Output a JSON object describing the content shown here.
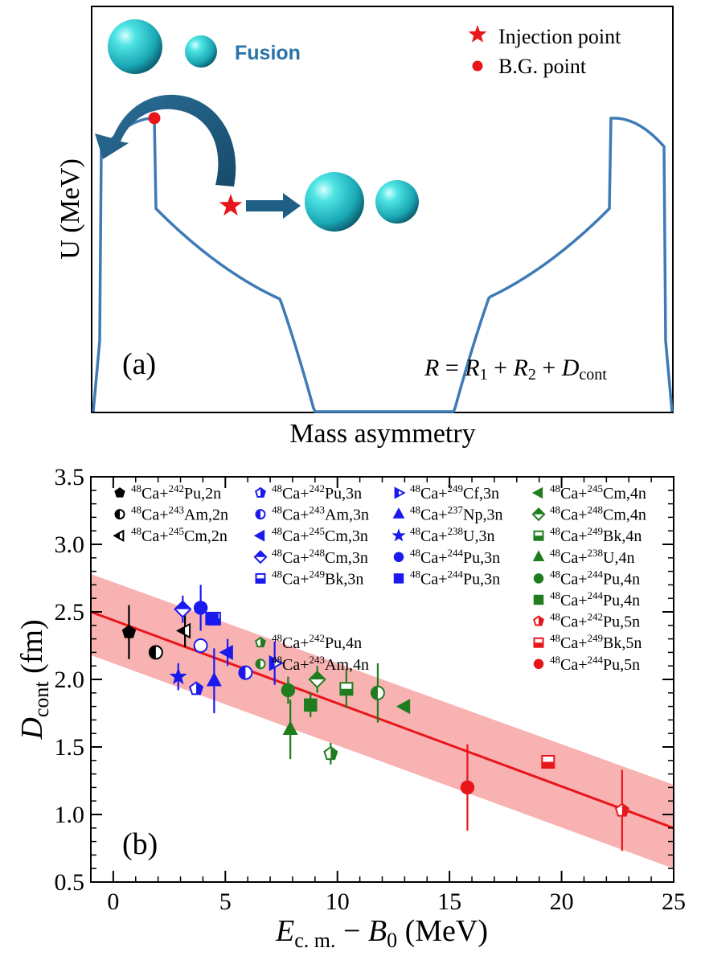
{
  "panel_a": {
    "label": "(a)",
    "ylabel": "U (MeV)",
    "xlabel": "Mass asymmetry",
    "fusion_label": "Fusion",
    "formula": {
      "lhs": "R",
      "t1": "R",
      "s1": "1",
      "t2": "R",
      "s2": "2",
      "t3": "D",
      "s3": "cont"
    },
    "legend": [
      {
        "label": "Injection point",
        "marker": "star",
        "color": "#e8161b"
      },
      {
        "label": "B.G. point",
        "marker": "circle",
        "color": "#e8161b"
      }
    ],
    "colors": {
      "curve": "#3e7bb6",
      "arrow": "#1f5f86",
      "sphere": "#29c8c8",
      "fusion_text": "#2a73a8"
    }
  },
  "chart_data": {
    "type": "scatter",
    "panel_label": "(b)",
    "xlabel": {
      "main": "E",
      "sub": "c. m.",
      "mid": " − ",
      "main2": "B",
      "sub2": "0",
      "unit": " (MeV)"
    },
    "ylabel": {
      "main": "D",
      "sub": "cont",
      "unit": " (fm)"
    },
    "xlim": [
      -1,
      25
    ],
    "ylim": [
      0.5,
      3.5
    ],
    "xticks": [
      "0",
      "5",
      "10",
      "15",
      "20",
      "25"
    ],
    "yticks": [
      "0.5",
      "1.0",
      "1.5",
      "2.0",
      "2.5",
      "3.0",
      "3.5"
    ],
    "fit_line": {
      "x": [
        -1,
        25
      ],
      "y": [
        2.5,
        0.9
      ],
      "color": "#e8161b"
    },
    "band": {
      "upper": [
        2.78,
        1.22
      ],
      "lower": [
        2.18,
        0.6
      ],
      "color": "#f8b2b2"
    },
    "colors": {
      "black": "#000000",
      "blue": "#1a1aee",
      "green": "#1f7d1f",
      "red": "#e8161b"
    },
    "series": [
      {
        "name": "⁴⁸Ca+²⁴²Pu,2n",
        "iso": "48",
        "nuc": "Ca",
        "tiso": "242",
        "tgt": "Pu,2n",
        "marker": "pentagon",
        "fill": "full",
        "color": "black",
        "points": [
          {
            "x": 0.7,
            "y": 2.35,
            "err": 0.2
          }
        ]
      },
      {
        "name": "⁴⁸Ca+²⁴³Am,2n",
        "iso": "48",
        "nuc": "Ca",
        "tiso": "243",
        "tgt": "Am,2n",
        "marker": "circle",
        "fill": "left",
        "color": "black",
        "points": [
          {
            "x": 1.9,
            "y": 2.2,
            "err": 0.0
          }
        ]
      },
      {
        "name": "⁴⁸Ca+²⁴⁵Cm,2n",
        "iso": "48",
        "nuc": "Ca",
        "tiso": "245",
        "tgt": "Cm,2n",
        "marker": "tri-left",
        "fill": "left",
        "color": "black",
        "points": [
          {
            "x": 3.2,
            "y": 2.36,
            "err": 0.12
          }
        ]
      },
      {
        "name": "⁴⁸Ca+²⁴²Pu,3n",
        "iso": "48",
        "nuc": "Ca",
        "tiso": "242",
        "tgt": "Pu,3n",
        "marker": "pentagon",
        "fill": "right",
        "color": "blue",
        "points": [
          {
            "x": 3.7,
            "y": 1.93,
            "err": 0.0
          }
        ]
      },
      {
        "name": "⁴⁸Ca+²⁴³Am,3n",
        "iso": "48",
        "nuc": "Ca",
        "tiso": "243",
        "tgt": "Am,3n",
        "marker": "circle",
        "fill": "left",
        "color": "blue",
        "points": [
          {
            "x": 5.9,
            "y": 2.05,
            "err": 0.0
          }
        ]
      },
      {
        "name": "⁴⁸Ca+²⁴⁵Cm,3n",
        "iso": "48",
        "nuc": "Ca",
        "tiso": "245",
        "tgt": "Cm,3n",
        "marker": "tri-left",
        "fill": "full",
        "color": "blue",
        "points": [
          {
            "x": 5.1,
            "y": 2.2,
            "err": 0.1
          }
        ]
      },
      {
        "name": "⁴⁸Ca+²⁴⁸Cm,3n",
        "iso": "48",
        "nuc": "Ca",
        "tiso": "248",
        "tgt": "Cm,3n",
        "marker": "diamond",
        "fill": "top",
        "color": "blue",
        "points": [
          {
            "x": 3.1,
            "y": 2.52,
            "err": 0.1
          }
        ]
      },
      {
        "name": "⁴⁸Ca+²⁴⁹Bk,3n",
        "iso": "48",
        "nuc": "Ca",
        "tiso": "249",
        "tgt": "Bk,3n",
        "marker": "square",
        "fill": "bottom",
        "color": "blue",
        "points": [
          {
            "x": 4.5,
            "y": 2.45,
            "err": 0.05
          }
        ]
      },
      {
        "name": "⁴⁸Ca+²⁴⁹Cf,3n",
        "iso": "48",
        "nuc": "Ca",
        "tiso": "249",
        "tgt": "Cf,3n",
        "marker": "tri-right",
        "fill": "left",
        "color": "blue",
        "points": [
          {
            "x": 7.2,
            "y": 2.12,
            "err": 0.16
          }
        ]
      },
      {
        "name": "⁴⁸Ca+²³⁷Np,3n",
        "iso": "48",
        "nuc": "Ca",
        "tiso": "237",
        "tgt": "Np,3n",
        "marker": "tri-up",
        "fill": "full",
        "color": "blue",
        "points": [
          {
            "x": 4.5,
            "y": 1.99,
            "err": 0.24
          }
        ]
      },
      {
        "name": "⁴⁸Ca+²³⁸U,3n",
        "iso": "48",
        "nuc": "Ca",
        "tiso": "238",
        "tgt": "U,3n",
        "marker": "star",
        "fill": "full",
        "color": "blue",
        "points": [
          {
            "x": 2.9,
            "y": 2.02,
            "err": 0.1
          }
        ]
      },
      {
        "name": "⁴⁸Ca+²⁴⁴Pu,3n",
        "iso": "48",
        "nuc": "Ca",
        "tiso": "244",
        "tgt": "Pu,3n",
        "marker": "circle",
        "fill": "full",
        "color": "blue",
        "points": [
          {
            "x": 3.9,
            "y": 2.53,
            "err": 0.17
          }
        ]
      },
      {
        "name": "⁴⁸Ca+²⁴⁴Pu,3n",
        "iso": "48",
        "nuc": "Ca",
        "tiso": "244",
        "tgt": "Pu,3n",
        "marker": "square",
        "fill": "full",
        "color": "blue",
        "points": [
          {
            "x": 4.4,
            "y": 2.45,
            "err": 0.0
          }
        ]
      },
      {
        "name": "⁴⁸Ca+²⁴²Pu,4n",
        "iso": "48",
        "nuc": "Ca",
        "tiso": "242",
        "tgt": "Pu,4n",
        "marker": "pentagon",
        "fill": "right",
        "color": "green",
        "points": [
          {
            "x": 9.7,
            "y": 1.45,
            "err": 0.08
          }
        ]
      },
      {
        "name": "⁴⁸Ca+²⁴³Am,4n",
        "iso": "48",
        "nuc": "Ca",
        "tiso": "243",
        "tgt": "Am,4n",
        "marker": "circle",
        "fill": "left",
        "color": "green",
        "points": []
      },
      {
        "name": "⁴⁸Ca+²⁴⁵Cm,4n",
        "iso": "48",
        "nuc": "Ca",
        "tiso": "245",
        "tgt": "Cm,4n",
        "marker": "tri-left",
        "fill": "full",
        "color": "green",
        "points": [
          {
            "x": 13.0,
            "y": 1.8,
            "err": 0.0
          }
        ]
      },
      {
        "name": "⁴⁸Ca+²⁴⁸Cm,4n",
        "iso": "48",
        "nuc": "Ca",
        "tiso": "248",
        "tgt": "Cm,4n",
        "marker": "diamond",
        "fill": "top",
        "color": "green",
        "points": [
          {
            "x": 9.1,
            "y": 2.0,
            "err": 0.1
          }
        ]
      },
      {
        "name": "⁴⁸Ca+²⁴⁹Bk,4n",
        "iso": "48",
        "nuc": "Ca",
        "tiso": "249",
        "tgt": "Bk,4n",
        "marker": "square",
        "fill": "bottom",
        "color": "green",
        "points": [
          {
            "x": 10.4,
            "y": 1.93,
            "err": 0.14
          }
        ]
      },
      {
        "name": "⁴⁸Ca+²³⁸U,4n",
        "iso": "48",
        "nuc": "Ca",
        "tiso": "238",
        "tgt": "U,4n",
        "marker": "tri-up",
        "fill": "full",
        "color": "green",
        "points": [
          {
            "x": 7.9,
            "y": 1.63,
            "err": 0.22
          }
        ]
      },
      {
        "name": "⁴⁸Ca+²⁴⁴Pu,4n",
        "iso": "48",
        "nuc": "Ca",
        "tiso": "244",
        "tgt": "Pu,4n",
        "marker": "circle",
        "fill": "full",
        "color": "green",
        "points": [
          {
            "x": 7.8,
            "y": 1.92,
            "err": 0.1
          }
        ]
      },
      {
        "name": "⁴⁸Ca+²⁴⁴Pu,4n",
        "iso": "48",
        "nuc": "Ca",
        "tiso": "244",
        "tgt": "Pu,4n",
        "marker": "square",
        "fill": "full",
        "color": "green",
        "points": [
          {
            "x": 8.8,
            "y": 1.81,
            "err": 0.09
          }
        ]
      },
      {
        "name": "⁴⁸Ca+²⁴²Pu,5n",
        "iso": "48",
        "nuc": "Ca",
        "tiso": "242",
        "tgt": "Pu,5n",
        "marker": "pentagon",
        "fill": "right",
        "color": "red",
        "points": [
          {
            "x": 22.7,
            "y": 1.03,
            "err": 0.3
          }
        ]
      },
      {
        "name": "⁴⁸Ca+²⁴⁹Bk,5n",
        "iso": "48",
        "nuc": "Ca",
        "tiso": "249",
        "tgt": "Bk,5n",
        "marker": "square",
        "fill": "bottom",
        "color": "red",
        "points": [
          {
            "x": 19.4,
            "y": 1.39,
            "err": 0.0
          }
        ]
      },
      {
        "name": "⁴⁸Ca+²⁴⁴Pu,5n",
        "iso": "48",
        "nuc": "Ca",
        "tiso": "244",
        "tgt": "Pu,5n",
        "marker": "circle",
        "fill": "full",
        "color": "red",
        "points": [
          {
            "x": 15.8,
            "y": 1.2,
            "err": 0.32
          }
        ]
      }
    ],
    "extra_points": [
      {
        "marker": "circle",
        "fill": "left",
        "color": "green",
        "x": 11.8,
        "y": 1.9,
        "err": 0.22,
        "open": true
      },
      {
        "marker": "circle",
        "fill": "open",
        "color": "blue",
        "x": 3.9,
        "y": 2.25,
        "err": 0.0,
        "open": true
      }
    ]
  }
}
